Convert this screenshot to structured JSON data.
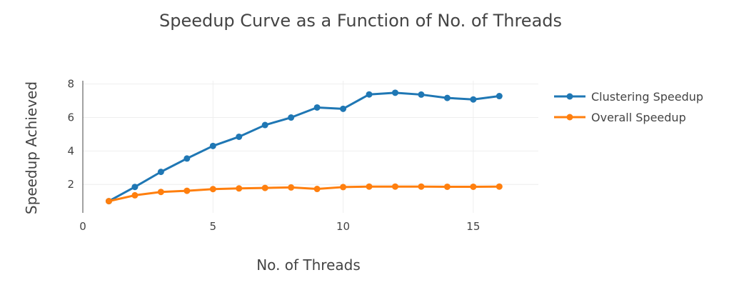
{
  "chart_data": {
    "type": "line",
    "title": "Speedup Curve as a Function of No. of Threads",
    "xlabel": "No.  of Threads",
    "ylabel": "Speedup Achieved",
    "xlim": [
      0,
      17.5
    ],
    "ylim": [
      0.3,
      8.2
    ],
    "xticks": [
      0,
      5,
      10,
      15
    ],
    "yticks": [
      2,
      4,
      6,
      8
    ],
    "grid": true,
    "legend_position": "top-right",
    "x": [
      1,
      2,
      3,
      4,
      5,
      6,
      7,
      8,
      9,
      10,
      11,
      12,
      13,
      14,
      15,
      16
    ],
    "series": [
      {
        "name": "Clustering Speedup",
        "color": "#1f77b4",
        "values": [
          1.0,
          1.85,
          2.75,
          3.55,
          4.3,
          4.85,
          5.55,
          6.0,
          6.6,
          6.52,
          7.38,
          7.48,
          7.37,
          7.17,
          7.08,
          7.28
        ]
      },
      {
        "name": "Overall Speedup",
        "color": "#ff7f0e",
        "values": [
          1.0,
          1.35,
          1.55,
          1.62,
          1.72,
          1.76,
          1.79,
          1.82,
          1.73,
          1.84,
          1.87,
          1.87,
          1.87,
          1.86,
          1.86,
          1.87
        ]
      }
    ]
  }
}
